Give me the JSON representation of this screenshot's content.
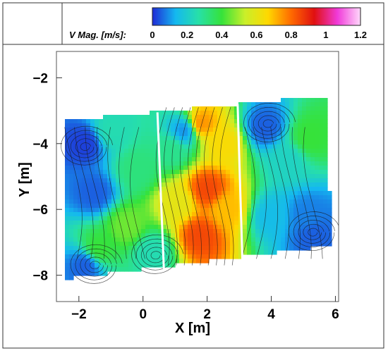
{
  "chart_data": {
    "type": "heatmap",
    "title": "",
    "xlabel": "X [m]",
    "ylabel": "Y [m]",
    "xlim": [
      -2.7,
      6.1
    ],
    "ylim": [
      -8.8,
      -1.2
    ],
    "x_ticks": [
      -2,
      0,
      2,
      4,
      6
    ],
    "x_tick_labels": [
      "−2",
      "0",
      "2",
      "4",
      "6"
    ],
    "y_ticks": [
      -2,
      -4,
      -6,
      -8
    ],
    "y_tick_labels": [
      "−2",
      "−4",
      "−6",
      "−8"
    ],
    "grid": false,
    "colorbar": {
      "label": "V Mag. [m/s]:",
      "range": [
        0,
        1.2
      ],
      "ticks": [
        0,
        0.2,
        0.4,
        0.6,
        0.8,
        1,
        1.2
      ],
      "tick_labels": [
        "0",
        "0.2",
        "0.4",
        "0.6",
        "0.8",
        "1",
        "1.2"
      ],
      "colors": [
        "#1f2bd6",
        "#14b8f0",
        "#27e0a8",
        "#36e23a",
        "#c9ef2a",
        "#ffd800",
        "#ff6a00",
        "#e01010",
        "#f03ad9",
        "#ffd9fb"
      ],
      "placement": "top"
    },
    "domain_corners": [
      [
        -2.45,
        -3.3
      ],
      [
        5.75,
        -2.55
      ],
      [
        5.85,
        -7.1
      ],
      [
        -2.4,
        -8.1
      ]
    ],
    "dividers": [
      {
        "top": [
          0.45,
          -3.05
        ],
        "bottom": [
          0.65,
          -7.8
        ]
      },
      {
        "top": [
          2.95,
          -2.8
        ],
        "bottom": [
          3.1,
          -7.55
        ]
      }
    ],
    "velocity_field": [
      {
        "x": -1.8,
        "y": -4.0,
        "v": 0.02
      },
      {
        "x": -1.5,
        "y": -5.5,
        "v": 0.05
      },
      {
        "x": -1.0,
        "y": -3.6,
        "v": 0.25
      },
      {
        "x": -0.2,
        "y": -4.8,
        "v": 0.32
      },
      {
        "x": -0.5,
        "y": -6.5,
        "v": 0.45
      },
      {
        "x": -1.4,
        "y": -7.2,
        "v": 0.4
      },
      {
        "x": 0.3,
        "y": -7.3,
        "v": 0.25
      },
      {
        "x": -1.8,
        "y": -7.7,
        "v": 0.05
      },
      {
        "x": 0.9,
        "y": -4.2,
        "v": 0.3
      },
      {
        "x": 1.1,
        "y": -5.8,
        "v": 0.6
      },
      {
        "x": 1.3,
        "y": -3.6,
        "v": 0.1
      },
      {
        "x": 1.8,
        "y": -3.4,
        "v": 0.75
      },
      {
        "x": 2.0,
        "y": -5.4,
        "v": 0.85
      },
      {
        "x": 1.8,
        "y": -6.8,
        "v": 0.85
      },
      {
        "x": 2.5,
        "y": -4.0,
        "v": 0.65
      },
      {
        "x": 2.6,
        "y": -6.0,
        "v": 0.7
      },
      {
        "x": 3.8,
        "y": -3.5,
        "v": 0.05
      },
      {
        "x": 4.5,
        "y": -4.5,
        "v": 0.22
      },
      {
        "x": 5.2,
        "y": -3.8,
        "v": 0.4
      },
      {
        "x": 4.0,
        "y": -6.2,
        "v": 0.15
      },
      {
        "x": 5.1,
        "y": -6.2,
        "v": 0.08
      },
      {
        "x": 5.3,
        "y": -6.8,
        "v": 0.05
      }
    ],
    "vortex_centers": [
      {
        "x": -1.8,
        "y": -4.1
      },
      {
        "x": 3.9,
        "y": -3.4
      },
      {
        "x": 5.3,
        "y": -6.7
      },
      {
        "x": 0.4,
        "y": -7.4
      },
      {
        "x": -1.5,
        "y": -7.7
      }
    ]
  }
}
